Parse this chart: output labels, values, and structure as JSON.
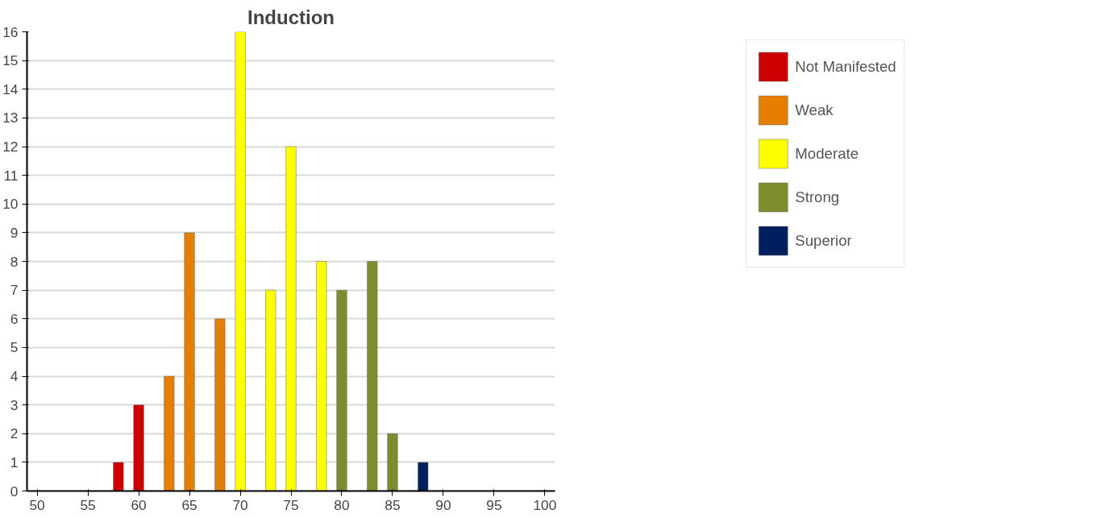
{
  "chart_data": {
    "type": "bar",
    "title": "Induction",
    "series": [
      {
        "name": "Not Manifested",
        "color": "#cc0000",
        "x": [
          58,
          60
        ],
        "values": [
          1,
          3
        ]
      },
      {
        "name": "Weak",
        "color": "#e67e00",
        "x": [
          63,
          65,
          68
        ],
        "values": [
          4,
          9,
          6
        ]
      },
      {
        "name": "Moderate",
        "color": "#ffff00",
        "x": [
          70,
          73,
          75,
          78
        ],
        "values": [
          16,
          7,
          12,
          8
        ]
      },
      {
        "name": "Strong",
        "color": "#7f8c2e",
        "x": [
          80,
          83,
          85
        ],
        "values": [
          7,
          8,
          2
        ]
      },
      {
        "name": "Superior",
        "color": "#001f5f",
        "x": [
          88
        ],
        "values": [
          1
        ]
      }
    ],
    "xlim": [
      49,
      101
    ],
    "xticks": [
      50,
      55,
      60,
      65,
      70,
      75,
      80,
      85,
      90,
      95,
      100
    ],
    "ylim": [
      0,
      16
    ],
    "yticks": [
      0,
      1,
      2,
      3,
      4,
      5,
      6,
      7,
      8,
      9,
      10,
      11,
      12,
      13,
      14,
      15,
      16
    ],
    "grid": "y",
    "legend": "top right"
  }
}
